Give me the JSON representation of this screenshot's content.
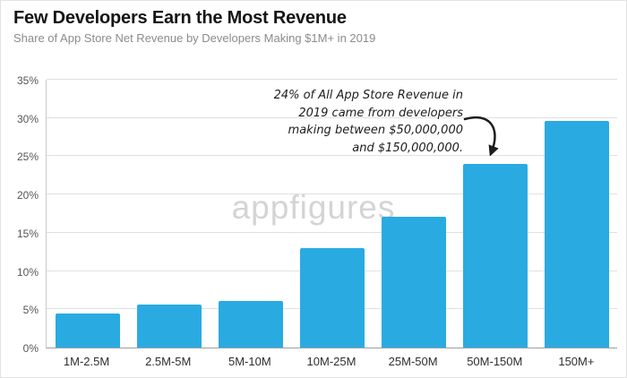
{
  "header": {
    "title": "Few Developers Earn the Most Revenue",
    "subtitle": "Share of App Store Net Revenue by Developers Making $1M+ in 2019"
  },
  "watermark": "appfigures",
  "annotation": {
    "text": "24% of All App Store Revenue in\n2019 came from developers\nmaking between $50,000,000\nand $150,000,000."
  },
  "chart_data": {
    "type": "bar",
    "categories": [
      "1M-2.5M",
      "2.5M-5M",
      "5M-10M",
      "10M-25M",
      "25M-50M",
      "50M-150M",
      "150M+"
    ],
    "values": [
      4.4,
      5.6,
      6.1,
      13,
      17.1,
      24,
      29.6
    ],
    "title": "Few Developers Earn the Most Revenue",
    "subtitle": "Share of App Store Net Revenue by Developers Making $1M+ in 2019",
    "xlabel": "",
    "ylabel": "",
    "ylim": [
      0,
      35
    ],
    "ytick_step": 5,
    "ytick_labels": [
      "0%",
      "5%",
      "10%",
      "15%",
      "20%",
      "25%",
      "30%",
      "35%"
    ],
    "bar_color": "#29ABE2",
    "grid": true,
    "legend": false,
    "annotation": "24% of All App Store Revenue in 2019 came from developers making between $50,000,000 and $150,000,000."
  }
}
